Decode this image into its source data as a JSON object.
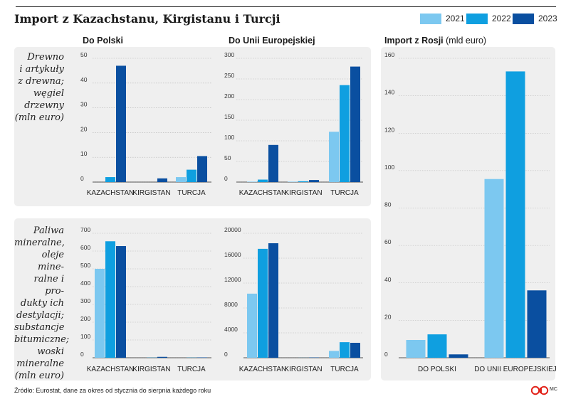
{
  "title": "Import z Kazachstanu, Kirgistanu i Turcji",
  "legend": [
    {
      "label": "2021",
      "color": "#7cc8f0"
    },
    {
      "label": "2022",
      "color": "#0f9fe0"
    },
    {
      "label": "2023",
      "color": "#0a4fa0"
    }
  ],
  "columns": {
    "poland": "Do Polski",
    "eu": "Do Unii Europejskiej",
    "russia_title": "Import z Rosji",
    "russia_unit": "(mld euro)"
  },
  "rows": {
    "wood": "Drewno\ni artykuły\nz drewna;\nwęgiel\ndrzewny\n(mln euro)",
    "fuel": "Paliwa\nmineralne,\noleje mine-\nralne i pro-\ndukty ich\ndestylacji;\nsubstancje\nbitumiczne;\nwoski\nmineralne\n(mln euro)"
  },
  "footer": {
    "source": "Źródło: Eurostat, dane za okres od stycznia do sierpnia każdego roku",
    "credit": "MC",
    "logo_icon": "publisher-logo-icon"
  },
  "chart_data": [
    {
      "id": "wood-poland",
      "type": "bar",
      "title": "Do Polski",
      "categories": [
        "KAZACHSTAN",
        "KIRGISTAN",
        "TURCJA"
      ],
      "ylim": [
        0,
        50
      ],
      "yticks": [
        0,
        10,
        20,
        30,
        40,
        50
      ],
      "series": [
        {
          "name": "2021",
          "values": [
            0,
            0,
            2
          ]
        },
        {
          "name": "2022",
          "values": [
            2,
            0,
            5
          ]
        },
        {
          "name": "2023",
          "values": [
            47,
            1.5,
            10.5
          ]
        }
      ]
    },
    {
      "id": "wood-eu",
      "type": "bar",
      "title": "Do Unii Europejskiej",
      "categories": [
        "KAZACHSTAN",
        "KIRGISTAN",
        "TURCJA"
      ],
      "ylim": [
        0,
        300
      ],
      "yticks": [
        0,
        50,
        100,
        150,
        200,
        250,
        300
      ],
      "series": [
        {
          "name": "2021",
          "values": [
            1,
            1,
            122
          ]
        },
        {
          "name": "2022",
          "values": [
            6,
            2,
            235
          ]
        },
        {
          "name": "2023",
          "values": [
            90,
            5,
            280
          ]
        }
      ]
    },
    {
      "id": "fuel-poland",
      "type": "bar",
      "title": "Do Polski",
      "categories": [
        "KAZACHSTAN",
        "KIRGISTAN",
        "TURCJA"
      ],
      "ylim": [
        0,
        700
      ],
      "yticks": [
        0,
        100,
        200,
        300,
        400,
        500,
        600,
        700
      ],
      "series": [
        {
          "name": "2021",
          "values": [
            500,
            0,
            0
          ]
        },
        {
          "name": "2022",
          "values": [
            655,
            1,
            1
          ]
        },
        {
          "name": "2023",
          "values": [
            628,
            5,
            2
          ]
        }
      ]
    },
    {
      "id": "fuel-eu",
      "type": "bar",
      "title": "Do Unii Europejskiej",
      "categories": [
        "KAZACHSTAN",
        "KIRGISTAN",
        "TURCJA"
      ],
      "ylim": [
        0,
        20000
      ],
      "yticks": [
        0,
        4000,
        8000,
        12000,
        16000,
        20000
      ],
      "series": [
        {
          "name": "2021",
          "values": [
            10300,
            0,
            1100
          ]
        },
        {
          "name": "2022",
          "values": [
            17500,
            10,
            2500
          ]
        },
        {
          "name": "2023",
          "values": [
            18400,
            50,
            2400
          ]
        }
      ]
    },
    {
      "id": "russia",
      "type": "bar",
      "title": "Import z Rosji (mld euro)",
      "categories": [
        "DO POLSKI",
        "DO UNII EUROPEJSKIEJ"
      ],
      "ylim": [
        0,
        160
      ],
      "yticks": [
        0,
        20,
        40,
        60,
        80,
        100,
        120,
        140,
        160
      ],
      "series": [
        {
          "name": "2021",
          "values": [
            9.5,
            95.5
          ]
        },
        {
          "name": "2022",
          "values": [
            12.5,
            153
          ]
        },
        {
          "name": "2023",
          "values": [
            1.8,
            36
          ]
        }
      ]
    }
  ]
}
